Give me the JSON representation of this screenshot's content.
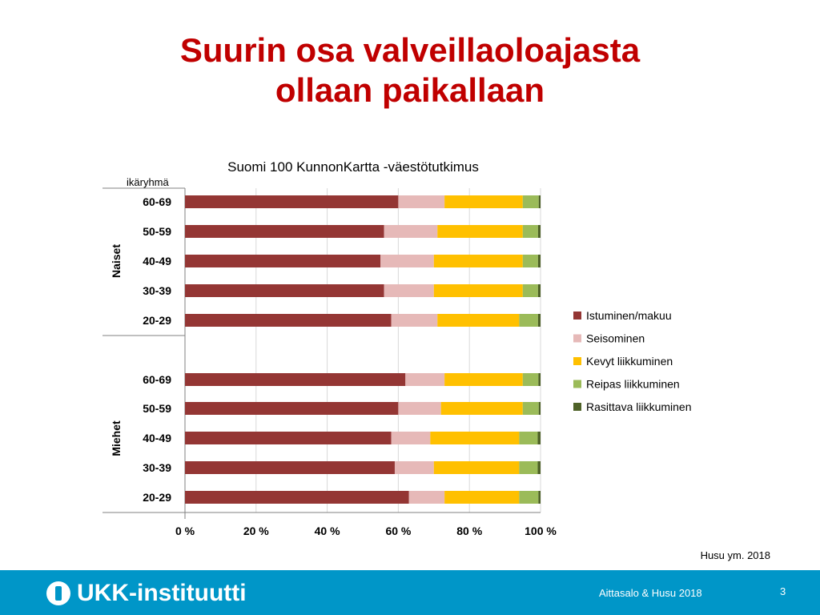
{
  "slide": {
    "title_line1": "Suurin osa valveillaoloajasta",
    "title_line2": "ollaan paikallaan",
    "source": "Husu ym. 2018",
    "footer_logo": "UKK-instituutti",
    "footer_credit": "Aittasalo & Husu 2018",
    "page_number": "3"
  },
  "colors": {
    "title": "#c00000",
    "footer_bg": "#0096c8",
    "grid": "#d9d9d9"
  },
  "chart_data": {
    "type": "bar",
    "orientation": "horizontal",
    "stacked": "percent",
    "title": "Suomi 100 KunnonKartta -väestötutkimus",
    "row_header": "ikäryhmä",
    "groups": [
      {
        "label": "Naiset",
        "categories": [
          "60-69",
          "50-59",
          "40-49",
          "30-39",
          "20-29"
        ]
      },
      {
        "label": "Miehet",
        "categories": [
          "60-69",
          "50-59",
          "40-49",
          "30-39",
          "20-29"
        ]
      }
    ],
    "categories": [
      "Naiset 60-69",
      "Naiset 50-59",
      "Naiset 40-49",
      "Naiset 30-39",
      "Naiset 20-29",
      "Miehet 60-69",
      "Miehet 50-59",
      "Miehet 40-49",
      "Miehet 30-39",
      "Miehet 20-29"
    ],
    "series": [
      {
        "name": "Istuminen/makuu",
        "color": "#943634",
        "values": [
          60,
          56,
          55,
          56,
          58,
          62,
          60,
          58,
          59,
          63
        ]
      },
      {
        "name": "Seisominen",
        "color": "#e6b9b8",
        "values": [
          13,
          15,
          15,
          14,
          13,
          11,
          12,
          11,
          11,
          10
        ]
      },
      {
        "name": "Kevyt liikkuminen",
        "color": "#ffc000",
        "values": [
          22,
          24,
          25,
          25,
          23,
          22,
          23,
          25,
          24,
          21
        ]
      },
      {
        "name": "Reipas liikkuminen",
        "color": "#9bbb59",
        "values": [
          4.5,
          4.3,
          4.3,
          4.3,
          5.3,
          4.4,
          4.5,
          5.2,
          5.2,
          5.4
        ]
      },
      {
        "name": "Rasittava liikkuminen",
        "color": "#4f6228",
        "values": [
          0.5,
          0.7,
          0.7,
          0.7,
          0.7,
          0.6,
          0.5,
          0.8,
          0.8,
          0.6
        ]
      }
    ],
    "xlim": [
      0,
      100
    ],
    "xticks": [
      "0 %",
      "20 %",
      "40 %",
      "60 %",
      "80 %",
      "100 %"
    ],
    "grid": true,
    "legend": "right"
  }
}
